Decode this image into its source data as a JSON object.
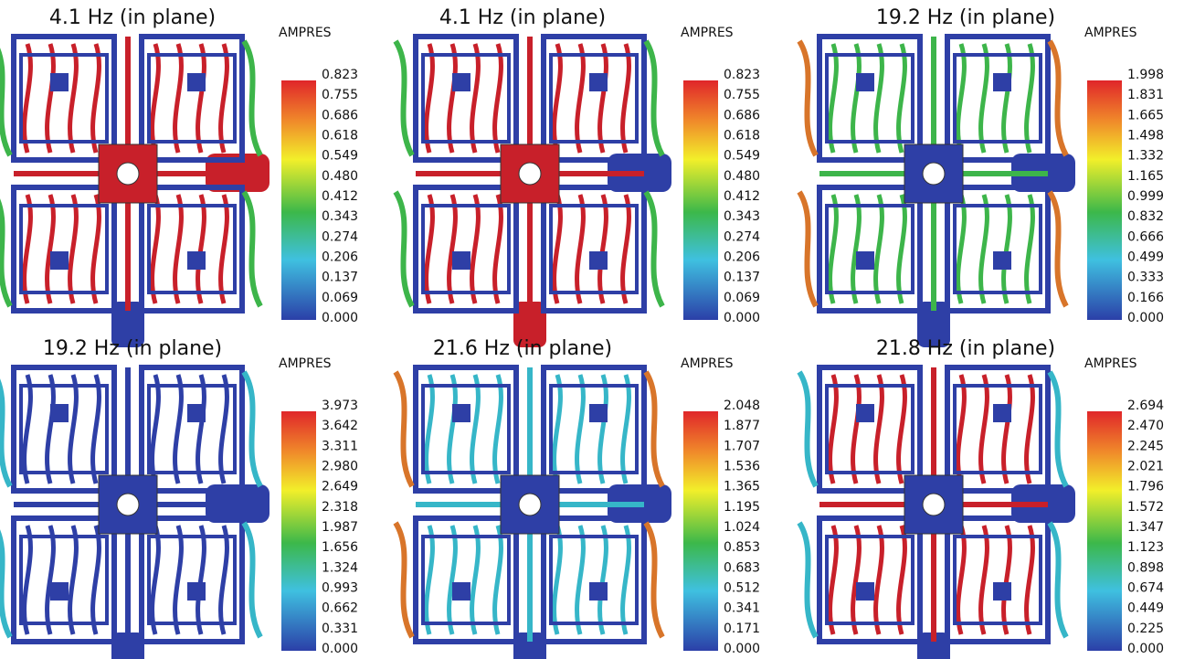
{
  "panels": [
    {
      "title": "4.1 Hz (in plane)",
      "unit": "AMPRES",
      "ticks": [
        "0.823",
        "0.755",
        "0.686",
        "0.618",
        "0.549",
        "0.480",
        "0.412",
        "0.343",
        "0.274",
        "0.206",
        "0.137",
        "0.069",
        "0.000"
      ]
    },
    {
      "title": "4.1 Hz (in plane)",
      "unit": "AMPRES",
      "ticks": [
        "0.823",
        "0.755",
        "0.686",
        "0.618",
        "0.549",
        "0.480",
        "0.412",
        "0.343",
        "0.274",
        "0.206",
        "0.137",
        "0.069",
        "0.000"
      ]
    },
    {
      "title": "19.2 Hz (in plane)",
      "unit": "AMPRES",
      "ticks": [
        "1.998",
        "1.831",
        "1.665",
        "1.498",
        "1.332",
        "1.165",
        "0.999",
        "0.832",
        "0.666",
        "0.499",
        "0.333",
        "0.166",
        "0.000"
      ]
    },
    {
      "title": "19.2 Hz (in plane)",
      "unit": "AMPRES",
      "ticks": [
        "3.973",
        "3.642",
        "3.311",
        "2.980",
        "2.649",
        "2.318",
        "1.987",
        "1.656",
        "1.324",
        "0.993",
        "0.662",
        "0.331",
        "0.000"
      ]
    },
    {
      "title": "21.6 Hz (in plane)",
      "unit": "AMPRES",
      "ticks": [
        "2.048",
        "1.877",
        "1.707",
        "1.536",
        "1.365",
        "1.195",
        "1.024",
        "0.853",
        "0.683",
        "0.512",
        "0.341",
        "0.171",
        "0.000"
      ]
    },
    {
      "title": "21.8 Hz (in plane)",
      "unit": "AMPRES",
      "ticks": [
        "2.694",
        "2.470",
        "2.245",
        "2.021",
        "1.796",
        "1.572",
        "1.347",
        "1.123",
        "0.898",
        "0.674",
        "0.449",
        "0.225",
        "0.000"
      ]
    }
  ]
}
